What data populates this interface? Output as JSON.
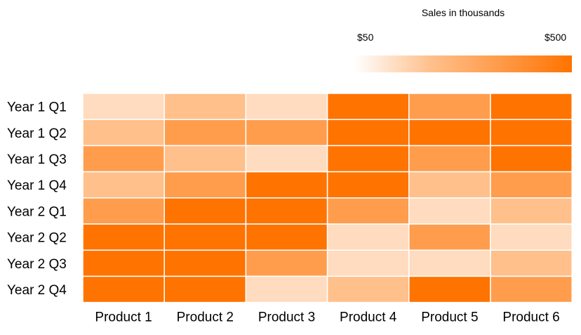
{
  "chart_data": {
    "type": "heatmap",
    "title": "",
    "rows": [
      "Year 1 Q1",
      "Year 1 Q2",
      "Year 1 Q3",
      "Year 1 Q4",
      "Year 2 Q1",
      "Year 2 Q2",
      "Year 2 Q3",
      "Year 2 Q4"
    ],
    "columns": [
      "Product 1",
      "Product 2",
      "Product 3",
      "Product 4",
      "Product 5",
      "Product 6"
    ],
    "values": [
      [
        125,
        225,
        125,
        500,
        350,
        500
      ],
      [
        225,
        350,
        350,
        500,
        500,
        500
      ],
      [
        350,
        225,
        125,
        500,
        350,
        500
      ],
      [
        225,
        350,
        500,
        500,
        225,
        350
      ],
      [
        350,
        500,
        500,
        350,
        125,
        225
      ],
      [
        500,
        500,
        500,
        125,
        350,
        125
      ],
      [
        500,
        500,
        350,
        125,
        125,
        225
      ],
      [
        500,
        500,
        125,
        225,
        500,
        350
      ]
    ],
    "color_scale": {
      "title": "Sales in thousands",
      "min_label": "$50",
      "max_label": "$500",
      "min": 50,
      "max": 500,
      "colors": [
        "#ffffff",
        "#ff7300"
      ],
      "placement": "top-right"
    }
  }
}
